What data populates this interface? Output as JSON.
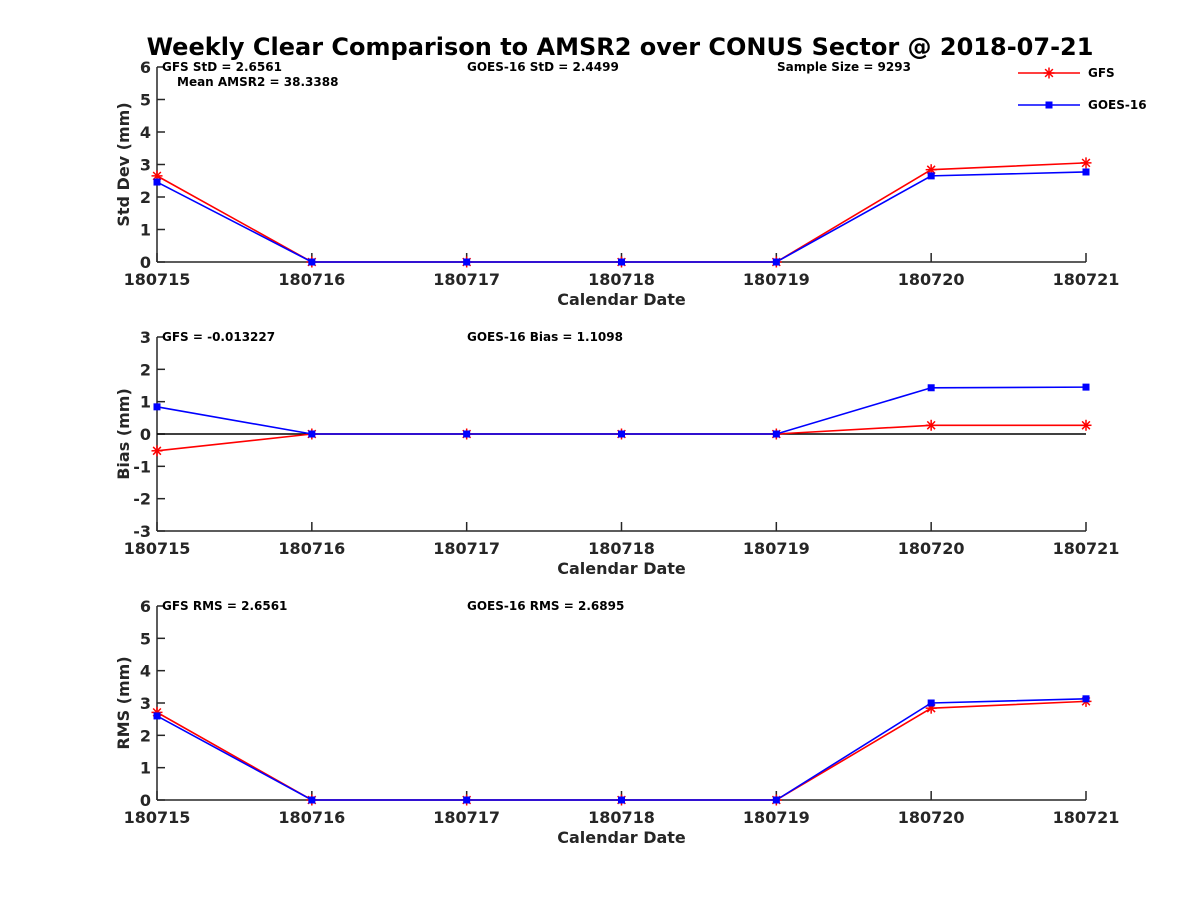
{
  "chart_data": {
    "title": "Weekly Clear Comparison to AMSR2 over CONUS Sector @ 2018-07-21",
    "legend": {
      "placement": "top-right",
      "entries": [
        {
          "name": "GFS",
          "color": "#ff0000",
          "marker": "asterisk"
        },
        {
          "name": "GOES-16",
          "color": "#0000ff",
          "marker": "square"
        }
      ]
    },
    "panels": [
      {
        "type": "line",
        "xlabel": "Calendar Date",
        "ylabel": "Std Dev (mm)",
        "ylim": [
          0,
          6
        ],
        "yticks": [
          0,
          1,
          2,
          3,
          4,
          5,
          6
        ],
        "categories": [
          "180715",
          "180716",
          "180717",
          "180718",
          "180719",
          "180720",
          "180721"
        ],
        "zero_line": false,
        "annotations": [
          {
            "text": "GFS StD = 2.6561",
            "anchor": "left"
          },
          {
            "text": "Mean AMSR2 = 38.3388",
            "anchor": "left2"
          },
          {
            "text": "GOES-16 StD = 2.4499",
            "anchor": "middle"
          },
          {
            "text": "Sample Size = 9293",
            "anchor": "right"
          }
        ],
        "series": [
          {
            "name": "GFS",
            "color": "#ff0000",
            "marker": "asterisk",
            "values": [
              2.65,
              0,
              0,
              0,
              0,
              2.84,
              3.05
            ]
          },
          {
            "name": "GOES-16",
            "color": "#0000ff",
            "marker": "square",
            "values": [
              2.46,
              0,
              0,
              0,
              0,
              2.65,
              2.77
            ]
          }
        ]
      },
      {
        "type": "line",
        "xlabel": "Calendar Date",
        "ylabel": "Bias (mm)",
        "ylim": [
          -3,
          3
        ],
        "yticks": [
          -3,
          -2,
          -1,
          0,
          1,
          2,
          3
        ],
        "categories": [
          "180715",
          "180716",
          "180717",
          "180718",
          "180719",
          "180720",
          "180721"
        ],
        "zero_line": true,
        "annotations": [
          {
            "text": "GFS = -0.013227",
            "anchor": "left"
          },
          {
            "text": "GOES-16 Bias  = 1.1098",
            "anchor": "middle"
          }
        ],
        "series": [
          {
            "name": "GFS",
            "color": "#ff0000",
            "marker": "asterisk",
            "values": [
              -0.52,
              0,
              0,
              0,
              0,
              0.27,
              0.27
            ]
          },
          {
            "name": "GOES-16",
            "color": "#0000ff",
            "marker": "square",
            "values": [
              0.84,
              0,
              0,
              0,
              0,
              1.43,
              1.45
            ]
          }
        ]
      },
      {
        "type": "line",
        "xlabel": "Calendar Date",
        "ylabel": "RMS (mm)",
        "ylim": [
          0,
          6
        ],
        "yticks": [
          0,
          1,
          2,
          3,
          4,
          5,
          6
        ],
        "categories": [
          "180715",
          "180716",
          "180717",
          "180718",
          "180719",
          "180720",
          "180721"
        ],
        "zero_line": false,
        "annotations": [
          {
            "text": "GFS RMS = 2.6561",
            "anchor": "left"
          },
          {
            "text": "GOES-16 RMS = 2.6895",
            "anchor": "middle"
          }
        ],
        "series": [
          {
            "name": "GFS",
            "color": "#ff0000",
            "marker": "asterisk",
            "values": [
              2.71,
              0,
              0,
              0,
              0,
              2.84,
              3.05
            ]
          },
          {
            "name": "GOES-16",
            "color": "#0000ff",
            "marker": "square",
            "values": [
              2.6,
              0,
              0,
              0,
              0,
              3.0,
              3.13
            ]
          }
        ]
      }
    ]
  }
}
